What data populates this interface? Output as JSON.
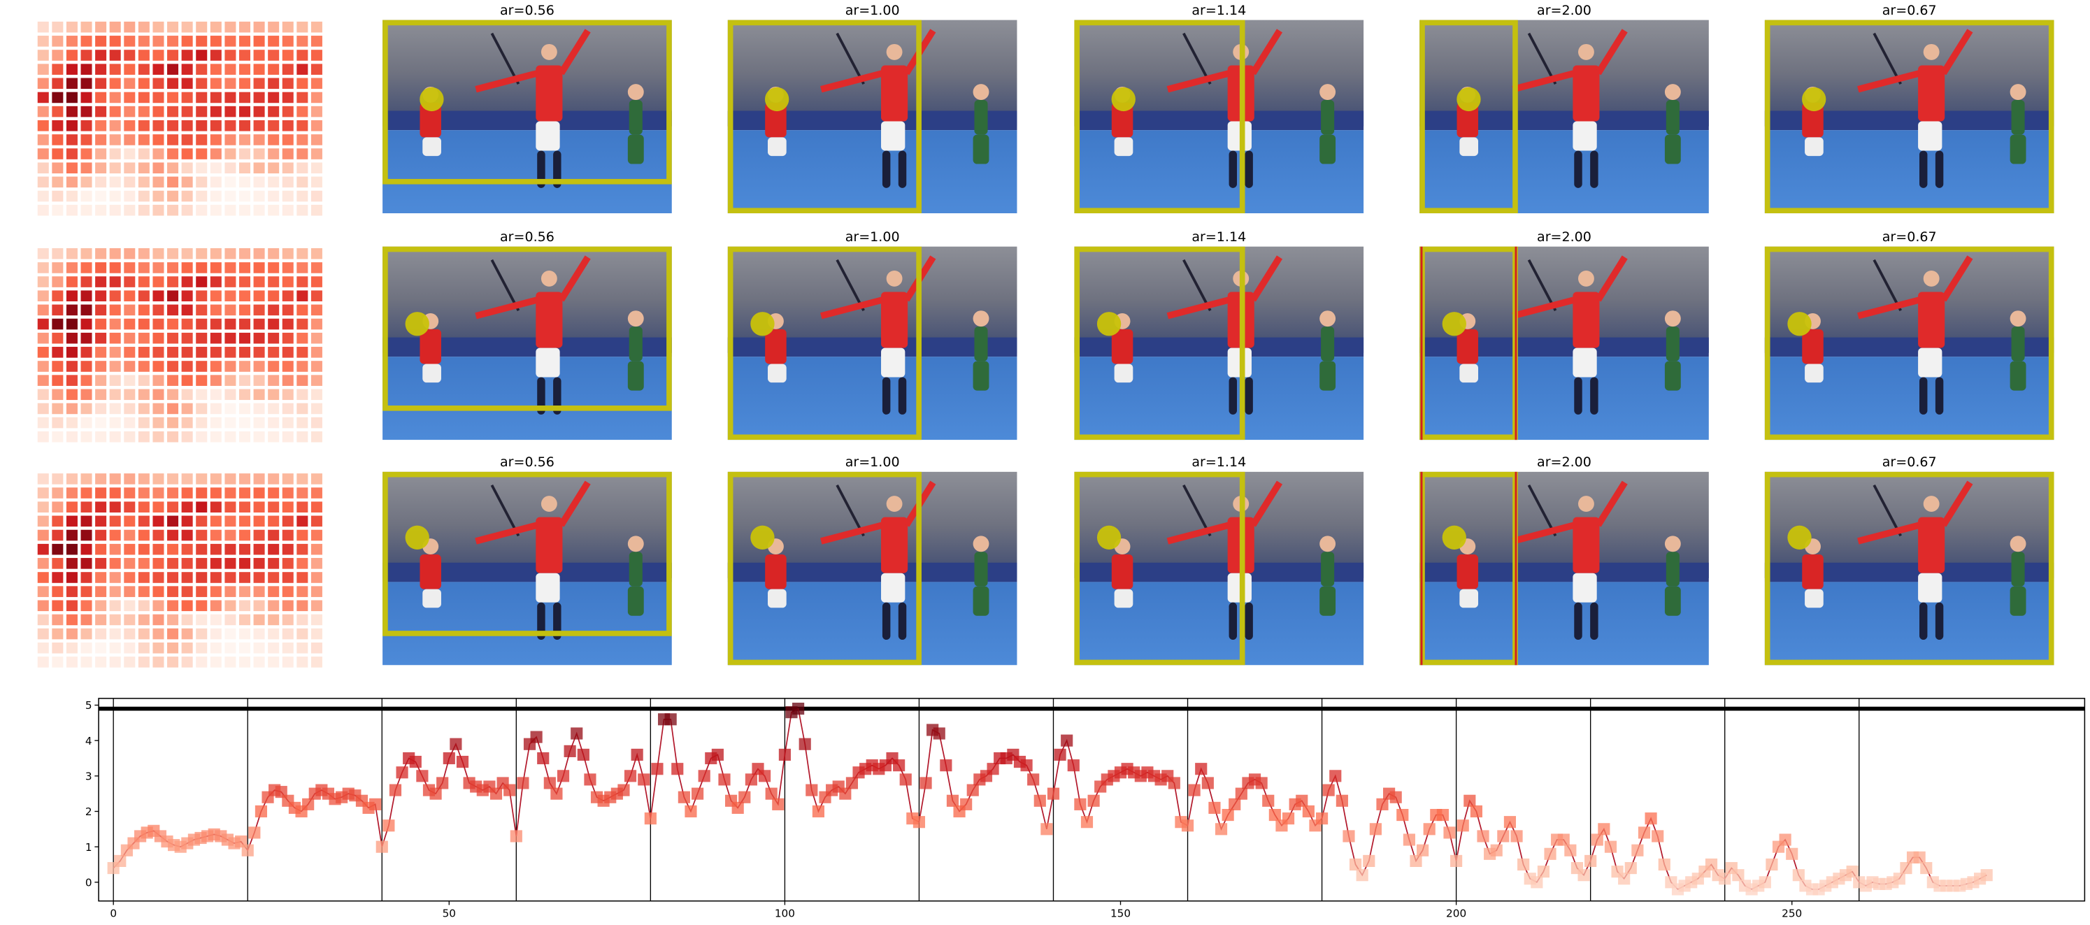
{
  "panels": {
    "rows": [
      {
        "titles": [
          "ar=0.56",
          "ar=1.00",
          "ar=1.14",
          "ar=2.00",
          "ar=0.67"
        ]
      },
      {
        "titles": [
          "ar=0.56",
          "ar=1.00",
          "ar=1.14",
          "ar=2.00",
          "ar=0.67"
        ]
      },
      {
        "titles": [
          "ar=0.56",
          "ar=1.00",
          "ar=1.14",
          "ar=2.00",
          "ar=0.67"
        ]
      }
    ]
  },
  "chart_data": {
    "type": "line",
    "x": [
      0,
      1,
      2,
      3,
      4,
      5,
      6,
      7,
      8,
      9,
      10,
      11,
      12,
      13,
      14,
      15,
      16,
      17,
      18,
      19,
      20,
      21,
      22,
      23,
      24,
      25,
      26,
      27,
      28,
      29,
      30,
      31,
      32,
      33,
      34,
      35,
      36,
      37,
      38,
      39,
      40,
      41,
      42,
      43,
      44,
      45,
      46,
      47,
      48,
      49,
      50,
      51,
      52,
      53,
      54,
      55,
      56,
      57,
      58,
      59,
      60,
      61,
      62,
      63,
      64,
      65,
      66,
      67,
      68,
      69,
      70,
      71,
      72,
      73,
      74,
      75,
      76,
      77,
      78,
      79,
      80,
      81,
      82,
      83,
      84,
      85,
      86,
      87,
      88,
      89,
      90,
      91,
      92,
      93,
      94,
      95,
      96,
      97,
      98,
      99,
      100,
      101,
      102,
      103,
      104,
      105,
      106,
      107,
      108,
      109,
      110,
      111,
      112,
      113,
      114,
      115,
      116,
      117,
      118,
      119,
      120,
      121,
      122,
      123,
      124,
      125,
      126,
      127,
      128,
      129,
      130,
      131,
      132,
      133,
      134,
      135,
      136,
      137,
      138,
      139,
      140,
      141,
      142,
      143,
      144,
      145,
      146,
      147,
      148,
      149,
      150,
      151,
      152,
      153,
      154,
      155,
      156,
      157,
      158,
      159,
      160,
      161,
      162,
      163,
      164,
      165,
      166,
      167,
      168,
      169,
      170,
      171,
      172,
      173,
      174,
      175,
      176,
      177,
      178,
      179,
      180,
      181,
      182,
      183,
      184,
      185,
      186,
      187,
      188,
      189,
      190,
      191,
      192,
      193,
      194,
      195,
      196,
      197,
      198,
      199,
      200,
      201,
      202,
      203,
      204,
      205,
      206,
      207,
      208,
      209,
      210,
      211,
      212,
      213,
      214,
      215,
      216,
      217,
      218,
      219,
      220,
      221,
      222,
      223,
      224,
      225,
      226,
      227,
      228,
      229,
      230,
      231,
      232,
      233,
      234,
      235,
      236,
      237,
      238,
      239,
      240,
      241,
      242,
      243,
      244,
      245,
      246,
      247,
      248,
      249,
      250,
      251,
      252,
      253,
      254,
      255,
      256,
      257,
      258,
      259,
      260,
      261,
      262,
      263,
      264,
      265,
      266,
      267,
      268,
      269,
      270,
      271,
      272,
      273,
      274,
      275,
      276,
      277,
      278,
      279
    ],
    "series": [
      {
        "color": "#b2182b",
        "colormap": "Reds",
        "values": [
          0.4,
          0.6,
          0.9,
          1.1,
          1.3,
          1.4,
          1.45,
          1.3,
          1.15,
          1.05,
          1.0,
          1.1,
          1.2,
          1.25,
          1.3,
          1.35,
          1.3,
          1.2,
          1.1,
          1.15,
          0.9,
          1.4,
          2.0,
          2.4,
          2.6,
          2.55,
          2.3,
          2.1,
          2.0,
          2.2,
          2.5,
          2.6,
          2.5,
          2.35,
          2.4,
          2.5,
          2.45,
          2.3,
          2.1,
          2.2,
          1.0,
          1.6,
          2.6,
          3.1,
          3.5,
          3.4,
          3.0,
          2.6,
          2.5,
          2.8,
          3.5,
          3.9,
          3.4,
          2.8,
          2.7,
          2.6,
          2.7,
          2.5,
          2.8,
          2.6,
          1.3,
          2.8,
          3.9,
          4.1,
          3.5,
          2.8,
          2.5,
          3.0,
          3.7,
          4.2,
          3.6,
          2.9,
          2.4,
          2.3,
          2.4,
          2.5,
          2.6,
          3.0,
          3.6,
          2.9,
          1.8,
          3.2,
          4.6,
          4.6,
          3.2,
          2.4,
          2.0,
          2.5,
          3.0,
          3.5,
          3.6,
          2.9,
          2.3,
          2.1,
          2.4,
          2.9,
          3.2,
          3.0,
          2.5,
          2.2,
          3.6,
          4.8,
          4.9,
          3.9,
          2.6,
          2.0,
          2.4,
          2.6,
          2.7,
          2.5,
          2.8,
          3.1,
          3.2,
          3.3,
          3.2,
          3.3,
          3.5,
          3.3,
          2.9,
          1.8,
          1.7,
          2.8,
          4.3,
          4.2,
          3.3,
          2.3,
          2.0,
          2.2,
          2.6,
          2.9,
          3.0,
          3.2,
          3.5,
          3.5,
          3.6,
          3.4,
          3.3,
          2.9,
          2.3,
          1.5,
          2.5,
          3.6,
          4.0,
          3.3,
          2.2,
          1.7,
          2.3,
          2.7,
          2.9,
          3.0,
          3.1,
          3.2,
          3.1,
          3.0,
          3.1,
          3.0,
          2.9,
          3.0,
          2.8,
          1.7,
          1.6,
          2.6,
          3.2,
          2.8,
          2.1,
          1.5,
          1.9,
          2.2,
          2.5,
          2.8,
          2.9,
          2.8,
          2.3,
          1.9,
          1.6,
          1.8,
          2.2,
          2.3,
          2.0,
          1.6,
          1.8,
          2.6,
          3.0,
          2.3,
          1.3,
          0.5,
          0.2,
          0.6,
          1.5,
          2.2,
          2.5,
          2.4,
          1.9,
          1.2,
          0.6,
          0.9,
          1.5,
          1.9,
          1.9,
          1.4,
          0.6,
          1.6,
          2.3,
          2.0,
          1.3,
          0.8,
          0.9,
          1.3,
          1.7,
          1.3,
          0.5,
          0.1,
          0.0,
          0.3,
          0.8,
          1.2,
          1.2,
          0.9,
          0.4,
          0.2,
          0.6,
          1.2,
          1.5,
          1.0,
          0.3,
          0.1,
          0.4,
          0.9,
          1.4,
          1.8,
          1.3,
          0.5,
          0.0,
          -0.2,
          -0.1,
          0.0,
          0.1,
          0.3,
          0.5,
          0.2,
          0.1,
          0.4,
          0.2,
          -0.1,
          -0.2,
          -0.1,
          0.0,
          0.5,
          1.0,
          1.2,
          0.8,
          0.2,
          -0.1,
          -0.2,
          -0.2,
          -0.1,
          0.0,
          0.1,
          0.2,
          0.3,
          0.0,
          -0.1,
          0.0,
          -0.05,
          -0.05,
          0.0,
          0.1,
          0.4,
          0.7,
          0.7,
          0.4,
          0.0,
          -0.1,
          -0.1,
          -0.1,
          -0.1,
          -0.05,
          0.0,
          0.1,
          0.2
        ]
      }
    ],
    "xlim": [
      -2.2,
      293.6
    ],
    "ylim": [
      -0.53,
      5.19
    ],
    "xticks": [
      0,
      50,
      100,
      150,
      200,
      250
    ],
    "yticks": [
      0,
      1,
      2,
      3,
      4,
      5
    ],
    "vlines": [
      0,
      20,
      40,
      60,
      80,
      100,
      120,
      140,
      160,
      180,
      200,
      220,
      240,
      260
    ],
    "hline": 4.9
  }
}
